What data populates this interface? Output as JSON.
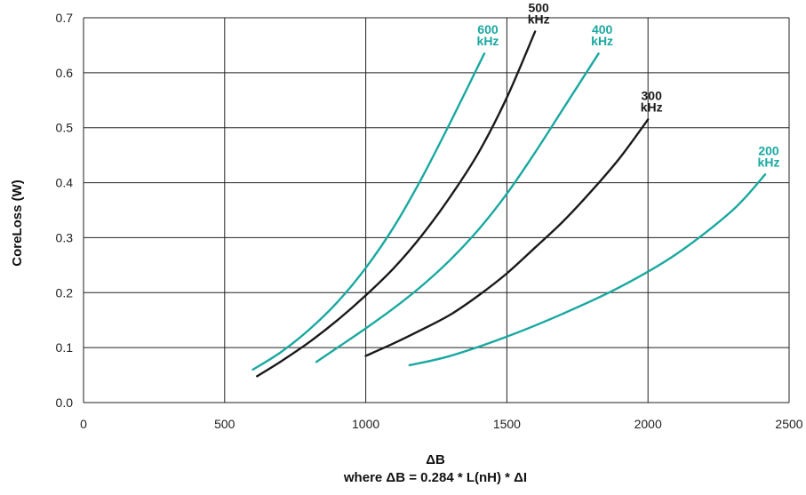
{
  "chart_data": {
    "type": "line",
    "title": "",
    "xlabel": "ΔB",
    "xlabel_sub": "where ΔB = 0.284 * L(nH) * ΔI",
    "ylabel": "CoreLoss (W)",
    "xlim": [
      0,
      2500
    ],
    "ylim": [
      0,
      0.7
    ],
    "xticks": [
      0,
      500,
      1000,
      1500,
      2000,
      2500
    ],
    "yticks": [
      0.0,
      0.1,
      0.2,
      0.3,
      0.4,
      0.5,
      0.6,
      0.7
    ],
    "xtick_labels": [
      "0",
      "500",
      "1000",
      "1500",
      "2000",
      "2500"
    ],
    "ytick_labels": [
      "0.0",
      "0.1",
      "0.2",
      "0.3",
      "0.4",
      "0.5",
      "0.6",
      "0.7"
    ],
    "grid": true,
    "legend": "none",
    "series": [
      {
        "label_top": "600",
        "label_bottom": "kHz",
        "color": "#1aa8a0",
        "x": [
          600,
          700,
          800,
          900,
          1000,
          1100,
          1200,
          1300,
          1420
        ],
        "y": [
          0.06,
          0.092,
          0.133,
          0.183,
          0.245,
          0.32,
          0.41,
          0.51,
          0.635
        ]
      },
      {
        "label_top": "500",
        "label_bottom": "kHz",
        "color": "#1a1a1a",
        "x": [
          615,
          700,
          800,
          900,
          1000,
          1100,
          1200,
          1300,
          1400,
          1500,
          1600
        ],
        "y": [
          0.048,
          0.075,
          0.11,
          0.15,
          0.195,
          0.245,
          0.305,
          0.375,
          0.455,
          0.555,
          0.675
        ]
      },
      {
        "label_top": "400",
        "label_bottom": "kHz",
        "color": "#1aa8a0",
        "x": [
          825,
          900,
          1000,
          1100,
          1200,
          1300,
          1400,
          1500,
          1600,
          1700,
          1825
        ],
        "y": [
          0.074,
          0.1,
          0.135,
          0.172,
          0.213,
          0.26,
          0.315,
          0.38,
          0.455,
          0.535,
          0.635
        ]
      },
      {
        "label_top": "300",
        "label_bottom": "kHz",
        "color": "#1a1a1a",
        "x": [
          1000,
          1100,
          1200,
          1300,
          1400,
          1500,
          1600,
          1700,
          1800,
          1900,
          2000
        ],
        "y": [
          0.085,
          0.108,
          0.133,
          0.16,
          0.195,
          0.235,
          0.282,
          0.33,
          0.385,
          0.445,
          0.515
        ]
      },
      {
        "label_top": "200",
        "label_bottom": "kHz",
        "color": "#1aa8a0",
        "x": [
          1155,
          1300,
          1500,
          1700,
          1900,
          2100,
          2300,
          2415
        ],
        "y": [
          0.068,
          0.085,
          0.12,
          0.162,
          0.21,
          0.27,
          0.35,
          0.415
        ]
      }
    ]
  }
}
